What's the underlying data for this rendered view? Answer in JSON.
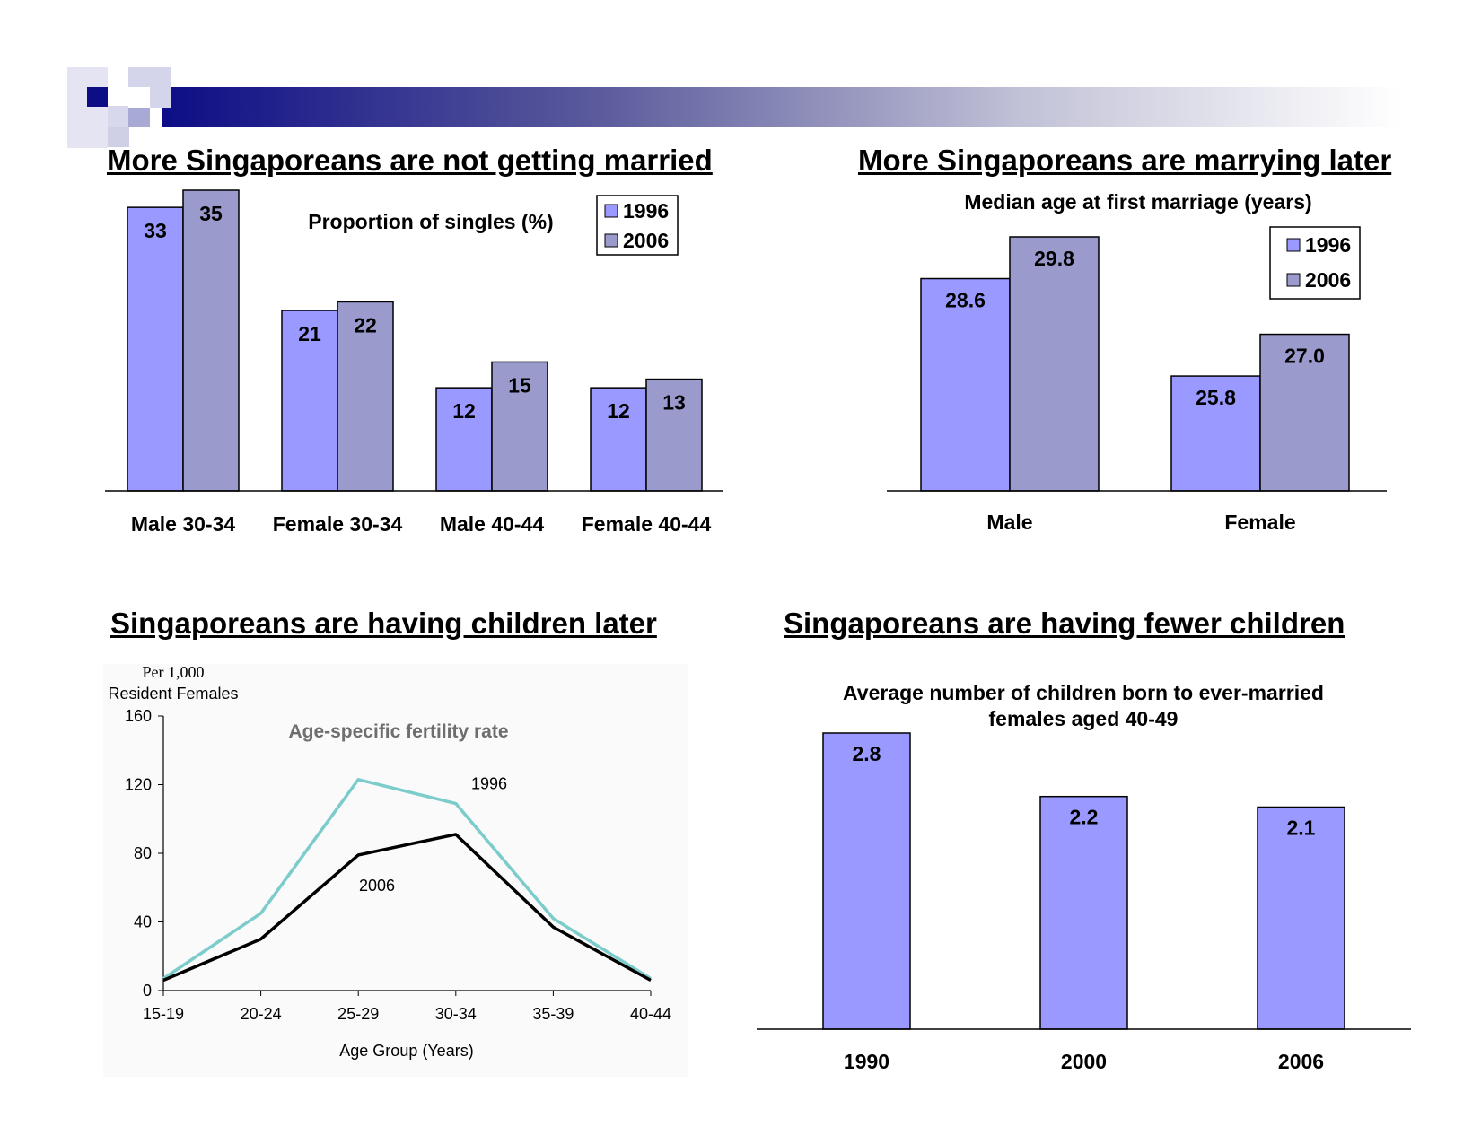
{
  "colors": {
    "bar_1996": "#9999ff",
    "bar_2006": "#9a9acc",
    "line_1996": "#7ccccc",
    "line_2006": "#000000",
    "banner_dark": "#0d0d86",
    "banner_light": "#cfcfe8"
  },
  "panels": {
    "singles": {
      "title": "More Singaporeans are not getting married"
    },
    "marriage_age": {
      "title": "More Singaporeans are marrying later"
    },
    "fertility": {
      "title": "Singaporeans are having children later"
    },
    "children": {
      "title": "Singaporeans are having fewer children"
    }
  },
  "chart_data": [
    {
      "id": "singles",
      "type": "bar",
      "subtitle": "Proportion of singles (%)",
      "categories": [
        "Male 30-34",
        "Female 30-34",
        "Male 40-44",
        "Female 40-44"
      ],
      "series": [
        {
          "name": "1996",
          "values": [
            33,
            21,
            12,
            12
          ]
        },
        {
          "name": "2006",
          "values": [
            35,
            22,
            15,
            13
          ]
        }
      ],
      "ylim": [
        0,
        35
      ],
      "legend": "top-right",
      "grid": false
    },
    {
      "id": "marriage_age",
      "type": "bar",
      "subtitle": "Median age at first marriage (years)",
      "categories": [
        "Male",
        "Female"
      ],
      "series": [
        {
          "name": "1996",
          "values": [
            28.6,
            25.8
          ]
        },
        {
          "name": "2006",
          "values": [
            29.8,
            27.0
          ]
        }
      ],
      "ylim": [
        22.5,
        29.8
      ],
      "legend": "top-right",
      "grid": false
    },
    {
      "id": "fertility",
      "type": "line",
      "subtitle": "Age-specific fertility rate",
      "ylabel": [
        "Per 1,000",
        "Resident Females"
      ],
      "xlabel": "Age Group (Years)",
      "categories": [
        "15-19",
        "20-24",
        "25-29",
        "30-34",
        "35-39",
        "40-44"
      ],
      "yticks": [
        "0",
        "40",
        "80",
        "120",
        "160"
      ],
      "ylim": [
        0,
        160
      ],
      "series": [
        {
          "name": "1996",
          "values": [
            7,
            45,
            123,
            109,
            42,
            7
          ]
        },
        {
          "name": "2006",
          "values": [
            6,
            30,
            79,
            91,
            37,
            6
          ]
        }
      ],
      "grid": false
    },
    {
      "id": "children",
      "type": "bar",
      "subtitle": [
        "Average number of children born to ever-married",
        "females aged 40-49"
      ],
      "categories": [
        "1990",
        "2000",
        "2006"
      ],
      "values": [
        2.8,
        2.2,
        2.1
      ],
      "value_labels": [
        "2.8",
        "2.2",
        "2.1"
      ],
      "ylim": [
        0,
        2.8
      ],
      "grid": false
    }
  ]
}
